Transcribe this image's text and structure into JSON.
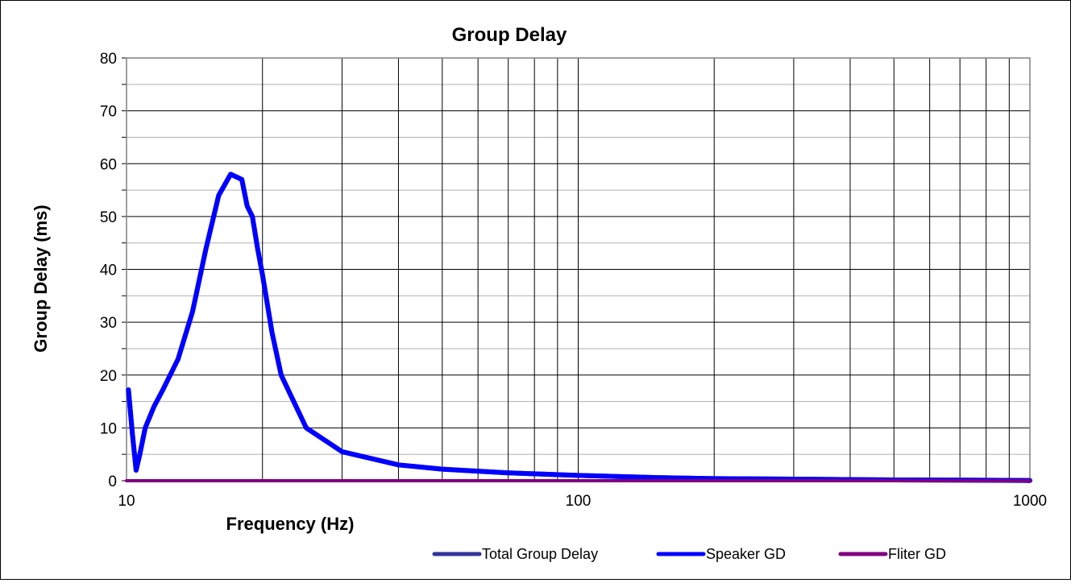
{
  "chart_data": {
    "type": "line",
    "title": "Group Delay",
    "xlabel": "Frequency (Hz)",
    "ylabel": "Group Delay (ms)",
    "x_scale": "log",
    "xlim": [
      10,
      1000
    ],
    "ylim": [
      0,
      80
    ],
    "grid": true,
    "legend_position": "bottom",
    "x_tick_labels": [
      "10",
      "100",
      "1000"
    ],
    "y_tick_labels": [
      "0",
      "10",
      "20",
      "30",
      "40",
      "50",
      "60",
      "70",
      "80"
    ],
    "series": [
      {
        "name": "Total Group Delay",
        "color": "#333399",
        "x": [
          10.1,
          10.3,
          10.5,
          10.7,
          11,
          11.5,
          12,
          13,
          14,
          15,
          16,
          17,
          18,
          18.5,
          19,
          19.5,
          20,
          21,
          22,
          25,
          30,
          40,
          50,
          70,
          100,
          150,
          200,
          300,
          500,
          700,
          1000
        ],
        "y": [
          17.2,
          9,
          2,
          5,
          10,
          14,
          17,
          23,
          32,
          44,
          54,
          58,
          57,
          52,
          50,
          44,
          39,
          28,
          20,
          10,
          5.5,
          3,
          2.2,
          1.5,
          1,
          0.6,
          0.4,
          0.3,
          0.15,
          0.1,
          0.05
        ]
      },
      {
        "name": "Speaker GD",
        "color": "#0000ff",
        "x": [
          10.1,
          10.3,
          10.5,
          10.7,
          11,
          11.5,
          12,
          13,
          14,
          15,
          16,
          17,
          18,
          18.5,
          19,
          19.5,
          20,
          21,
          22,
          25,
          30,
          40,
          50,
          70,
          100,
          150,
          200,
          300,
          500,
          700,
          1000
        ],
        "y": [
          17.2,
          9,
          2,
          5,
          10,
          14,
          17,
          23,
          32,
          44,
          54,
          58,
          57,
          52,
          50,
          44,
          39,
          28,
          20,
          10,
          5.5,
          3,
          2.2,
          1.5,
          1,
          0.6,
          0.4,
          0.3,
          0.15,
          0.1,
          0.05
        ]
      },
      {
        "name": "Fliter GD",
        "color": "#800080",
        "x": [
          10,
          1000
        ],
        "y": [
          0,
          0
        ]
      }
    ]
  }
}
